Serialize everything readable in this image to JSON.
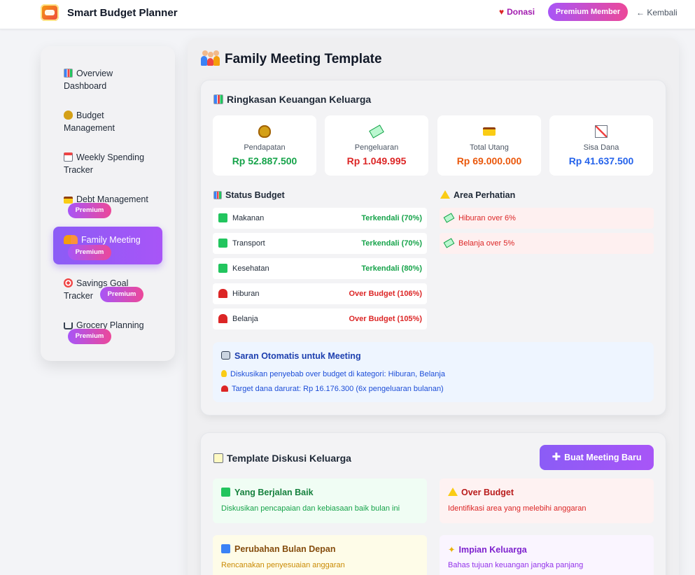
{
  "header": {
    "app_title": "Smart Budget Planner",
    "donasi": "Donasi",
    "premium_member": "Premium Member",
    "back": "← Kembali"
  },
  "sidebar": {
    "items": [
      {
        "label": "Overview Dashboard",
        "icon": "bar-chart-icon"
      },
      {
        "label": "Budget Management",
        "icon": "money-bag-icon"
      },
      {
        "label": "Weekly Spending Tracker",
        "icon": "calendar-icon"
      },
      {
        "label": "Debt Management",
        "icon": "credit-card-icon",
        "badge": "Premium"
      },
      {
        "label": "Family Meeting",
        "icon": "family-icon",
        "badge": "Premium",
        "active": true
      },
      {
        "label": "Savings Goal Tracker",
        "icon": "target-icon",
        "badge": "Premium"
      },
      {
        "label": "Grocery Planning",
        "icon": "shopping-cart-icon",
        "badge": "Premium"
      }
    ]
  },
  "main": {
    "title": "Family Meeting Template",
    "summary": {
      "title": "Ringkasan Keuangan Keluarga",
      "stats": [
        {
          "label": "Pendapatan",
          "value": "Rp 52.887.500",
          "color": "#16a34a",
          "icon": "money-bag-icon"
        },
        {
          "label": "Pengeluaran",
          "value": "Rp 1.049.995",
          "color": "#dc2626",
          "icon": "flying-money-icon"
        },
        {
          "label": "Total Utang",
          "value": "Rp 69.000.000",
          "color": "#ea580c",
          "icon": "credit-card-icon"
        },
        {
          "label": "Sisa Dana",
          "value": "Rp 41.637.500",
          "color": "#2563eb",
          "icon": "chart-up-icon"
        }
      ],
      "status_title": "Status Budget",
      "status": [
        {
          "category": "Makanan",
          "status": "Terkendali (70%)",
          "ok": true
        },
        {
          "category": "Transport",
          "status": "Terkendali (70%)",
          "ok": true
        },
        {
          "category": "Kesehatan",
          "status": "Terkendali (80%)",
          "ok": true
        },
        {
          "category": "Hiburan",
          "status": "Over Budget (106%)",
          "ok": false
        },
        {
          "category": "Belanja",
          "status": "Over Budget (105%)",
          "ok": false
        }
      ],
      "attention_title": "Area Perhatian",
      "attention": [
        "Hiburan over 6%",
        "Belanja over 5%"
      ],
      "suggestion_title": "Saran Otomatis untuk Meeting",
      "suggestions": [
        "Diskusikan penyebab over budget di kategori: Hiburan, Belanja",
        "Target dana darurat: Rp 16.176.300 (6x pengeluaran bulanan)"
      ]
    },
    "discussion": {
      "title": "Template Diskusi Keluarga",
      "new_button": "Buat Meeting Baru",
      "cards": [
        {
          "title": "Yang Berjalan Baik",
          "desc": "Diskusikan pencapaian dan kebiasaan baik bulan ini"
        },
        {
          "title": "Over Budget",
          "desc": "Identifikasi area yang melebihi anggaran"
        },
        {
          "title": "Perubahan Bulan Depan",
          "desc": "Rencanakan penyesuaian anggaran"
        },
        {
          "title": "Impian Keluarga",
          "desc": "Bahas tujuan keuangan jangka panjang"
        }
      ]
    }
  },
  "colors": {
    "accent": "#8b5cf6",
    "premium_gradient": [
      "#a855f7",
      "#ec4899"
    ],
    "ok": "#16a34a",
    "danger": "#dc2626"
  }
}
